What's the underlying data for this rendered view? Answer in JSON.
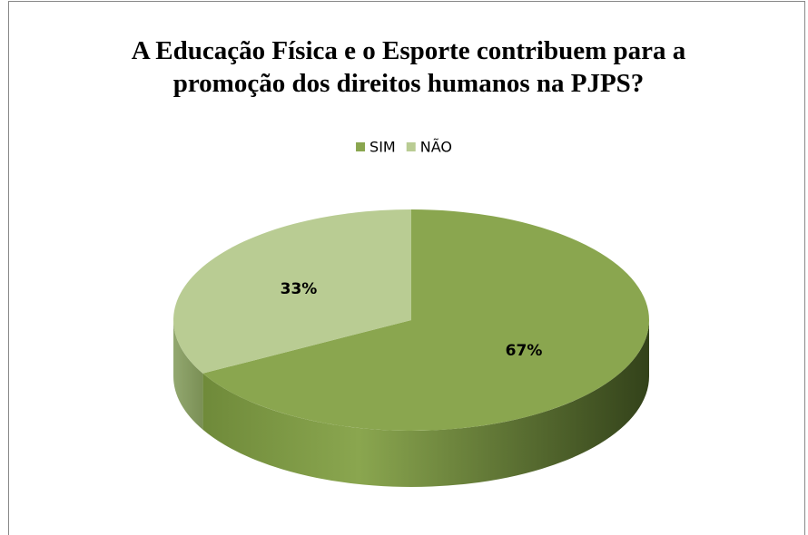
{
  "chart_data": {
    "type": "pie",
    "title": "A Educação Física e o Esporte contribuem para a promoção dos direitos humanos na PJPS?",
    "categories": [
      "SIM",
      "NÃO"
    ],
    "values": [
      67,
      33
    ],
    "value_labels": [
      "67%",
      "33%"
    ],
    "colors": [
      "#8aa64f",
      "#b9cc93"
    ],
    "legend": "top"
  }
}
